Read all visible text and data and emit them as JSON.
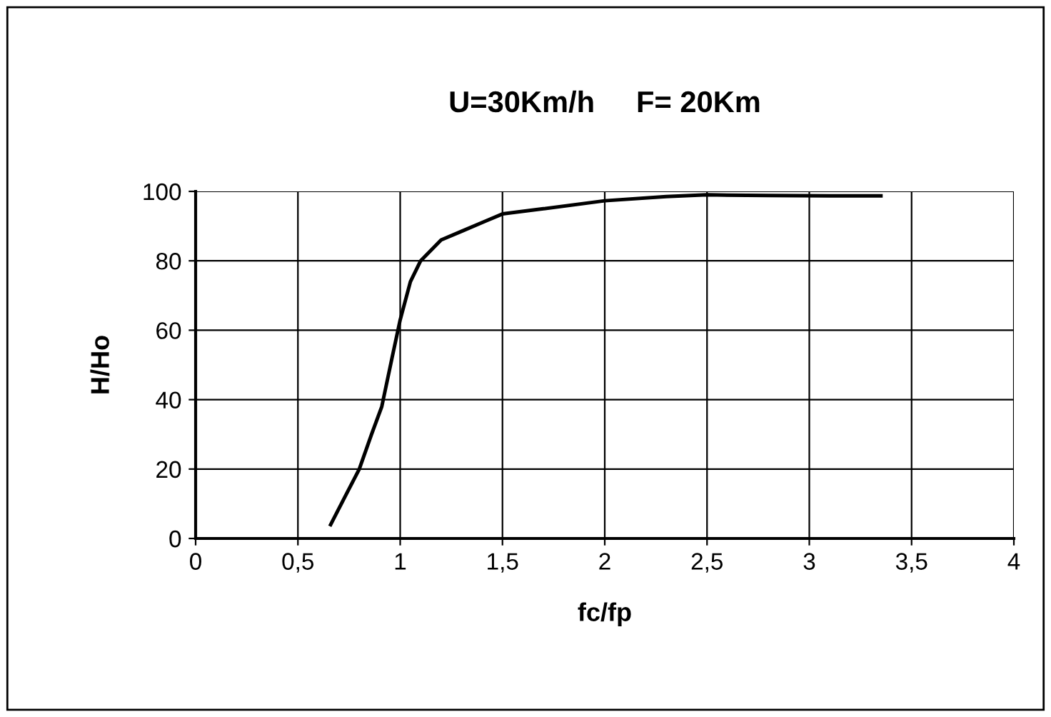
{
  "chart_data": {
    "type": "line",
    "title": "U=30Km/h     F= 20Km",
    "xlabel": "fc/fp",
    "ylabel": "H/Ho",
    "series": [
      {
        "color": "#000000",
        "x": [
          0.66,
          0.73,
          0.8,
          0.86,
          0.91,
          0.96,
          1.0,
          1.05,
          1.1,
          1.2,
          1.3,
          1.42,
          1.5,
          1.7,
          2.0,
          2.3,
          2.5,
          2.8,
          3.1,
          3.35
        ],
        "values": [
          4,
          12,
          20,
          30,
          38,
          52,
          63,
          74,
          80,
          86,
          88.5,
          91.5,
          93.5,
          95,
          97.3,
          98.5,
          99,
          98.8,
          98.7,
          98.7
        ]
      }
    ],
    "xlim": [
      0,
      4
    ],
    "xticks": [
      0,
      {
        "value": 0.5,
        "label": "0,5"
      },
      1,
      {
        "value": 1.5,
        "label": "1,5"
      },
      2,
      {
        "value": 2.5,
        "label": "2,5"
      },
      3,
      {
        "value": 3.5,
        "label": "3,5"
      },
      4
    ],
    "ylim": [
      0,
      100
    ],
    "yticks": [
      0,
      20,
      40,
      60,
      80,
      100
    ],
    "grid": true,
    "marker": "none",
    "line_style": "solid"
  }
}
